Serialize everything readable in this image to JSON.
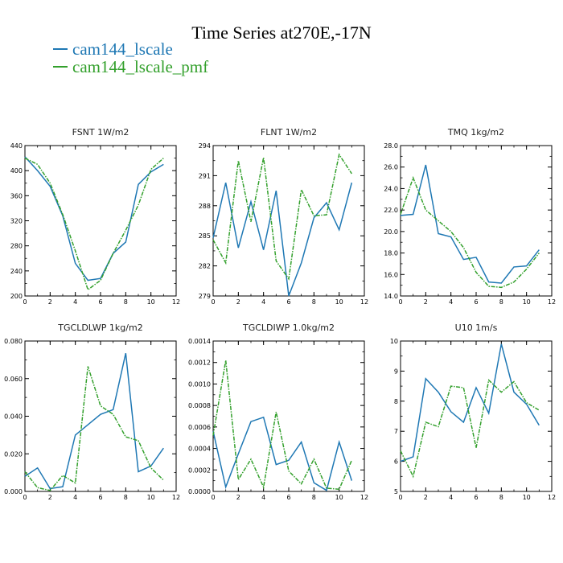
{
  "title": "Time Series at270E,-17N",
  "colors": {
    "series1": "#1f78b4",
    "series2": "#33a02c"
  },
  "legend": [
    {
      "name": "cam144_lscale",
      "color": "#1f78b4"
    },
    {
      "name": "cam144_lscale_pmf",
      "color": "#33a02c"
    }
  ],
  "chart_data": [
    {
      "type": "line",
      "title": "FSNT   1W/m2",
      "x": [
        0,
        1,
        2,
        3,
        4,
        5,
        6,
        7,
        8,
        9,
        10,
        11
      ],
      "xlim": [
        0,
        12
      ],
      "xticks": [
        "0",
        "2",
        "4",
        "6",
        "8",
        "10",
        "12"
      ],
      "ylim": [
        200,
        440
      ],
      "yticks": [
        "200",
        "240",
        "280",
        "320",
        "360",
        "400",
        "440"
      ],
      "series": [
        {
          "name": "cam144_lscale",
          "values": [
            422,
            400,
            375,
            328,
            252,
            225,
            228,
            268,
            286,
            378,
            398,
            410
          ]
        },
        {
          "name": "cam144_lscale_pmf",
          "values": [
            420,
            410,
            380,
            330,
            272,
            210,
            225,
            268,
            305,
            345,
            402,
            420
          ]
        }
      ]
    },
    {
      "type": "line",
      "title": "FLNT   1W/m2",
      "x": [
        0,
        1,
        2,
        3,
        4,
        5,
        6,
        7,
        8,
        9,
        10,
        11
      ],
      "xlim": [
        0,
        12
      ],
      "xticks": [
        "0",
        "2",
        "4",
        "6",
        "8",
        "10",
        "12"
      ],
      "ylim": [
        279,
        294
      ],
      "yticks": [
        "279",
        "282",
        "285",
        "288",
        "291",
        "294"
      ],
      "series": [
        {
          "name": "cam144_lscale",
          "values": [
            284.8,
            290.3,
            283.8,
            288.4,
            283.6,
            289.5,
            279.0,
            282.3,
            286.8,
            288.3,
            285.6,
            290.3
          ]
        },
        {
          "name": "cam144_lscale_pmf",
          "values": [
            284.6,
            282.3,
            292.5,
            286.4,
            292.8,
            282.5,
            280.7,
            289.6,
            287.0,
            287.1,
            293.1,
            291.2
          ]
        }
      ]
    },
    {
      "type": "line",
      "title": "TMQ   1kg/m2",
      "x": [
        0,
        1,
        2,
        3,
        4,
        5,
        6,
        7,
        8,
        9,
        10,
        11
      ],
      "xlim": [
        0,
        12
      ],
      "xticks": [
        "0",
        "2",
        "4",
        "6",
        "8",
        "10",
        "12"
      ],
      "ylim": [
        14.0,
        28.0
      ],
      "yticks": [
        "14.0",
        "16.0",
        "18.0",
        "20.0",
        "22.0",
        "24.0",
        "26.0",
        "28.0"
      ],
      "series": [
        {
          "name": "cam144_lscale",
          "values": [
            21.5,
            21.6,
            26.2,
            19.8,
            19.5,
            17.4,
            17.6,
            15.3,
            15.2,
            16.7,
            16.8,
            18.3
          ]
        },
        {
          "name": "cam144_lscale_pmf",
          "values": [
            21.6,
            25.0,
            22.0,
            21.0,
            20.0,
            18.5,
            16.2,
            14.9,
            14.8,
            15.3,
            16.5,
            18.0
          ]
        }
      ]
    },
    {
      "type": "line",
      "title": "TGCLDLWP   1kg/m2",
      "x": [
        0,
        1,
        2,
        3,
        4,
        5,
        6,
        7,
        8,
        9,
        10,
        11
      ],
      "xlim": [
        0,
        12
      ],
      "xticks": [
        "0",
        "2",
        "4",
        "6",
        "8",
        "10",
        "12"
      ],
      "ylim": [
        0,
        0.08
      ],
      "yticks": [
        "0.000",
        "0.020",
        "0.040",
        "0.060",
        "0.080"
      ],
      "series": [
        {
          "name": "cam144_lscale",
          "values": [
            0.008,
            0.0125,
            0.0015,
            0.0025,
            0.03,
            0.0355,
            0.041,
            0.0435,
            0.0735,
            0.0105,
            0.0135,
            0.023
          ]
        },
        {
          "name": "cam144_lscale_pmf",
          "values": [
            0.0105,
            0.002,
            0.0005,
            0.0085,
            0.0045,
            0.0665,
            0.0455,
            0.041,
            0.029,
            0.027,
            0.0125,
            0.006
          ]
        }
      ]
    },
    {
      "type": "line",
      "title": "TGCLDIWP   1.0kg/m2",
      "x": [
        0,
        1,
        2,
        3,
        4,
        5,
        6,
        7,
        8,
        9,
        10,
        11
      ],
      "xlim": [
        0,
        12
      ],
      "xticks": [
        "0",
        "2",
        "4",
        "6",
        "8",
        "10",
        "12"
      ],
      "ylim": [
        0,
        0.0014
      ],
      "yticks": [
        "0.0000",
        "0.0002",
        "0.0004",
        "0.0006",
        "0.0008",
        "0.0010",
        "0.0012",
        "0.0014"
      ],
      "series": [
        {
          "name": "cam144_lscale",
          "values": [
            0.00056,
            4e-05,
            0.00035,
            0.00065,
            0.00069,
            0.00025,
            0.00029,
            0.00046,
            8e-05,
            1e-05,
            0.00046,
            0.0001
          ]
        },
        {
          "name": "cam144_lscale_pmf",
          "values": [
            0.00052,
            0.00122,
            0.00011,
            0.0003,
            4e-05,
            0.00074,
            0.00019,
            7e-05,
            0.0003,
            3e-05,
            2e-05,
            0.00029
          ]
        }
      ]
    },
    {
      "type": "line",
      "title": "U10   1m/s",
      "x": [
        0,
        1,
        2,
        3,
        4,
        5,
        6,
        7,
        8,
        9,
        10,
        11
      ],
      "xlim": [
        0,
        12
      ],
      "xticks": [
        "0",
        "2",
        "4",
        "6",
        "8",
        "10",
        "12"
      ],
      "ylim": [
        5,
        10
      ],
      "yticks": [
        "5",
        "6",
        "7",
        "8",
        "9",
        "10"
      ],
      "series": [
        {
          "name": "cam144_lscale",
          "values": [
            6.0,
            6.15,
            8.75,
            8.3,
            7.65,
            7.3,
            8.45,
            7.6,
            9.9,
            8.3,
            7.9,
            7.2
          ]
        },
        {
          "name": "cam144_lscale_pmf",
          "values": [
            6.35,
            5.5,
            7.3,
            7.15,
            8.5,
            8.45,
            6.45,
            8.7,
            8.3,
            8.65,
            7.95,
            7.7
          ]
        }
      ]
    }
  ]
}
